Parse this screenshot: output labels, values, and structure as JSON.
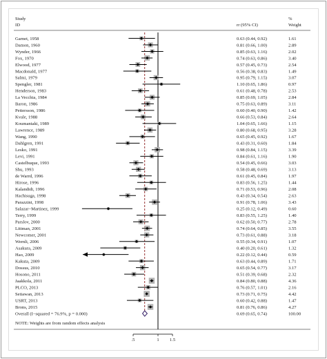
{
  "chart_data": {
    "type": "forest",
    "header": {
      "study_line1": "Study",
      "study_line2": "ID",
      "effect_label": "rr (95% CI)",
      "weight_line1": "%",
      "weight_line2": "Weight"
    },
    "studies": [
      {
        "id": "Garnet, 1958",
        "rr": 0.63,
        "lo": 0.44,
        "hi": 0.92,
        "rr_text": "0.63 (0.44, 0.92)",
        "weight": "1.61"
      },
      {
        "id": "Damon, 1960",
        "rr": 0.81,
        "lo": 0.66,
        "hi": 1.0,
        "rr_text": "0.81 (0.66, 1.00)",
        "weight": "2.89"
      },
      {
        "id": "Wynder, 1966",
        "rr": 0.85,
        "lo": 0.63,
        "hi": 1.16,
        "rr_text": "0.85 (0.63, 1.16)",
        "weight": "2.02"
      },
      {
        "id": "Fox, 1970",
        "rr": 0.74,
        "lo": 0.63,
        "hi": 0.86,
        "rr_text": "0.74 (0.63, 0.86)",
        "weight": "3.40"
      },
      {
        "id": "Elwood, 1977",
        "rr": 0.57,
        "lo": 0.45,
        "hi": 0.73,
        "rr_text": "0.57 (0.45, 0.73)",
        "weight": "2.54"
      },
      {
        "id": "Macdonald, 1977",
        "rr": 0.56,
        "lo": 0.38,
        "hi": 0.83,
        "rr_text": "0.56 (0.38, 0.83)",
        "weight": "1.49"
      },
      {
        "id": "Salmi, 1979",
        "rr": 0.95,
        "lo": 0.79,
        "hi": 1.15,
        "rr_text": "0.95 (0.79, 1.15)",
        "weight": "3.07"
      },
      {
        "id": "Spengler, 1981",
        "rr": 1.1,
        "lo": 0.65,
        "hi": 1.86,
        "rr_text": "1.10 (0.65, 1.86)",
        "weight": "0.97"
      },
      {
        "id": "Henderson, 1983",
        "rr": 0.61,
        "lo": 0.48,
        "hi": 0.78,
        "rr_text": "0.61 (0.48, 0.78)",
        "weight": "2.53"
      },
      {
        "id": "La Vecchia, 1984",
        "rr": 0.85,
        "lo": 0.69,
        "hi": 1.05,
        "rr_text": "0.85 (0.69, 1.05)",
        "weight": "2.84"
      },
      {
        "id": "Baron, 1986",
        "rr": 0.75,
        "lo": 0.63,
        "hi": 0.89,
        "rr_text": "0.75 (0.63, 0.89)",
        "weight": "3.11"
      },
      {
        "id": "Pettersson, 1986",
        "rr": 0.6,
        "lo": 0.4,
        "hi": 0.9,
        "rr_text": "0.60 (0.40, 0.90)",
        "weight": "1.42"
      },
      {
        "id": "Kvale, 1988",
        "rr": 0.66,
        "lo": 0.53,
        "hi": 0.84,
        "rr_text": "0.66 (0.53, 0.84)",
        "weight": "2.64"
      },
      {
        "id": "Koumantaki, 1989",
        "rr": 1.04,
        "lo": 0.65,
        "hi": 1.66,
        "rr_text": "1.04 (0.65, 1.66)",
        "weight": "1.15"
      },
      {
        "id": "Lawrence, 1989",
        "rr": 0.8,
        "lo": 0.68,
        "hi": 0.95,
        "rr_text": "0.80 (0.68, 0.95)",
        "weight": "3.28"
      },
      {
        "id": "Wang, 1990",
        "rr": 0.65,
        "lo": 0.45,
        "hi": 0.92,
        "rr_text": "0.65 (0.45, 0.92)",
        "weight": "1.67"
      },
      {
        "id": "Dahlgren, 1991",
        "rr": 0.43,
        "lo": 0.31,
        "hi": 0.6,
        "rr_text": "0.43 (0.31, 0.60)",
        "weight": "1.84"
      },
      {
        "id": "Lesko, 1991",
        "rr": 0.98,
        "lo": 0.84,
        "hi": 1.15,
        "rr_text": "0.98 (0.84, 1.15)",
        "weight": "3.39"
      },
      {
        "id": "Levi, 1991",
        "rr": 0.84,
        "lo": 0.61,
        "hi": 1.16,
        "rr_text": "0.84 (0.61, 1.16)",
        "weight": "1.90"
      },
      {
        "id": "Castelbuque, 1993",
        "rr": 0.54,
        "lo": 0.45,
        "hi": 0.66,
        "rr_text": "0.54 (0.45, 0.66)",
        "weight": "3.03"
      },
      {
        "id": "Shu, 1993",
        "rr": 0.58,
        "lo": 0.48,
        "hi": 0.69,
        "rr_text": "0.58 (0.48, 0.69)",
        "weight": "3.13"
      },
      {
        "id": "de Warrd, 1996",
        "rr": 0.61,
        "lo": 0.45,
        "hi": 0.84,
        "rr_text": "0.61 (0.45, 0.84)",
        "weight": "1.97"
      },
      {
        "id": "Hirose, 1996",
        "rr": 0.83,
        "lo": 0.56,
        "hi": 1.25,
        "rr_text": "0.83 (0.56, 1.25)",
        "weight": "1.44"
      },
      {
        "id": "Kalandidi, 1996",
        "rr": 0.71,
        "lo": 0.53,
        "hi": 0.96,
        "rr_text": "0.71 (0.53, 0.96)",
        "weight": "2.08"
      },
      {
        "id": "Hachisuga, 1998",
        "rr": 0.43,
        "lo": 0.34,
        "hi": 0.54,
        "rr_text": "0.43 (0.34, 0.54)",
        "weight": "2.63"
      },
      {
        "id": "Parazzini, 1998",
        "rr": 0.91,
        "lo": 0.78,
        "hi": 1.06,
        "rr_text": "0.91 (0.78, 1.06)",
        "weight": "3.43"
      },
      {
        "id": "Salazar−Martinez, 1999",
        "rr": 0.25,
        "lo": 0.12,
        "hi": 0.49,
        "rr_text": "0.25 (0.12, 0.49)",
        "weight": "0.60"
      },
      {
        "id": "Terry, 1999",
        "rr": 0.83,
        "lo": 0.55,
        "hi": 1.25,
        "rr_text": "0.83 (0.55, 1.25)",
        "weight": "1.40"
      },
      {
        "id": "Parslov, 2000",
        "rr": 0.62,
        "lo": 0.5,
        "hi": 0.77,
        "rr_text": "0.62 (0.50, 0.77)",
        "weight": "2.78"
      },
      {
        "id": "Littman, 2001",
        "rr": 0.74,
        "lo": 0.64,
        "hi": 0.85,
        "rr_text": "0.74 (0.64, 0.85)",
        "weight": "3.55"
      },
      {
        "id": "Newcomer, 2001",
        "rr": 0.73,
        "lo": 0.61,
        "hi": 0.88,
        "rr_text": "0.73 (0.61, 0.88)",
        "weight": "3.18"
      },
      {
        "id": "Wernli, 2006",
        "rr": 0.55,
        "lo": 0.34,
        "hi": 0.91,
        "rr_text": "0.55 (0.34, 0.91)",
        "weight": "1.07"
      },
      {
        "id": "Asakura, 2009",
        "rr": 0.4,
        "lo": 0.2,
        "hi": 0.61,
        "rr_text": "0.40 (0.20, 0.61)",
        "weight": "1.32"
      },
      {
        "id": "Hao, 2009",
        "rr": 0.22,
        "lo": 0.12,
        "hi": 0.44,
        "rr_text": "0.22 (0.12, 0.44)",
        "weight": "0.59",
        "arrow": true
      },
      {
        "id": "Kakuta, 2009",
        "rr": 0.63,
        "lo": 0.44,
        "hi": 0.89,
        "rr_text": "0.63 (0.44, 0.89)",
        "weight": "1.71"
      },
      {
        "id": "Dossus, 2010",
        "rr": 0.65,
        "lo": 0.54,
        "hi": 0.77,
        "rr_text": "0.65 (0.54, 0.77)",
        "weight": "3.17"
      },
      {
        "id": "Hosono, 2011",
        "rr": 0.51,
        "lo": 0.39,
        "hi": 0.68,
        "rr_text": "0.51 (0.39, 0.68)",
        "weight": "2.32"
      },
      {
        "id": "Jaakkola, 2011",
        "rr": 0.84,
        "lo": 0.8,
        "hi": 0.88,
        "rr_text": "0.84 (0.80, 0.88)",
        "weight": "4.36"
      },
      {
        "id": "PLCO, 2013",
        "rr": 0.76,
        "lo": 0.57,
        "hi": 1.01,
        "rr_text": "0.76 (0.57, 1.01)",
        "weight": "2.16"
      },
      {
        "id": "Setiawan, 2013",
        "rr": 0.73,
        "lo": 0.71,
        "hi": 0.75,
        "rr_text": "0.73 (0.71, 0.75)",
        "weight": "4.42"
      },
      {
        "id": "USRT, 2013",
        "rr": 0.6,
        "lo": 0.42,
        "hi": 0.88,
        "rr_text": "0.60 (0.42, 0.88)",
        "weight": "1.47"
      },
      {
        "id": "Brons, 2015",
        "rr": 0.81,
        "lo": 0.76,
        "hi": 0.86,
        "rr_text": "0.81 (0.76, 0.86)",
        "weight": "4.27"
      }
    ],
    "overall": {
      "label": "Overall  (I−squared = 76.9%, p = 0.000)",
      "rr": 0.69,
      "lo": 0.65,
      "hi": 0.74,
      "rr_text": "0.69 (0.65, 0.74)",
      "weight": "100.00"
    },
    "note": "NOTE: Weights are from random effects analysis",
    "x_axis": {
      "scale": "log",
      "ticks": [
        {
          "value": 0.5,
          "label": ".5"
        },
        {
          "value": 1,
          "label": "1"
        },
        {
          "value": 1.5,
          "label": "1.5"
        }
      ]
    },
    "reference_line": 1,
    "colors": {
      "box": "#b3b3b3",
      "line": "#000000",
      "diamond_fill": "#ffffff",
      "diamond_stroke": "#3f2a6e",
      "overall_line": "#8b1a1a",
      "frame": "#9a9a9a"
    }
  }
}
